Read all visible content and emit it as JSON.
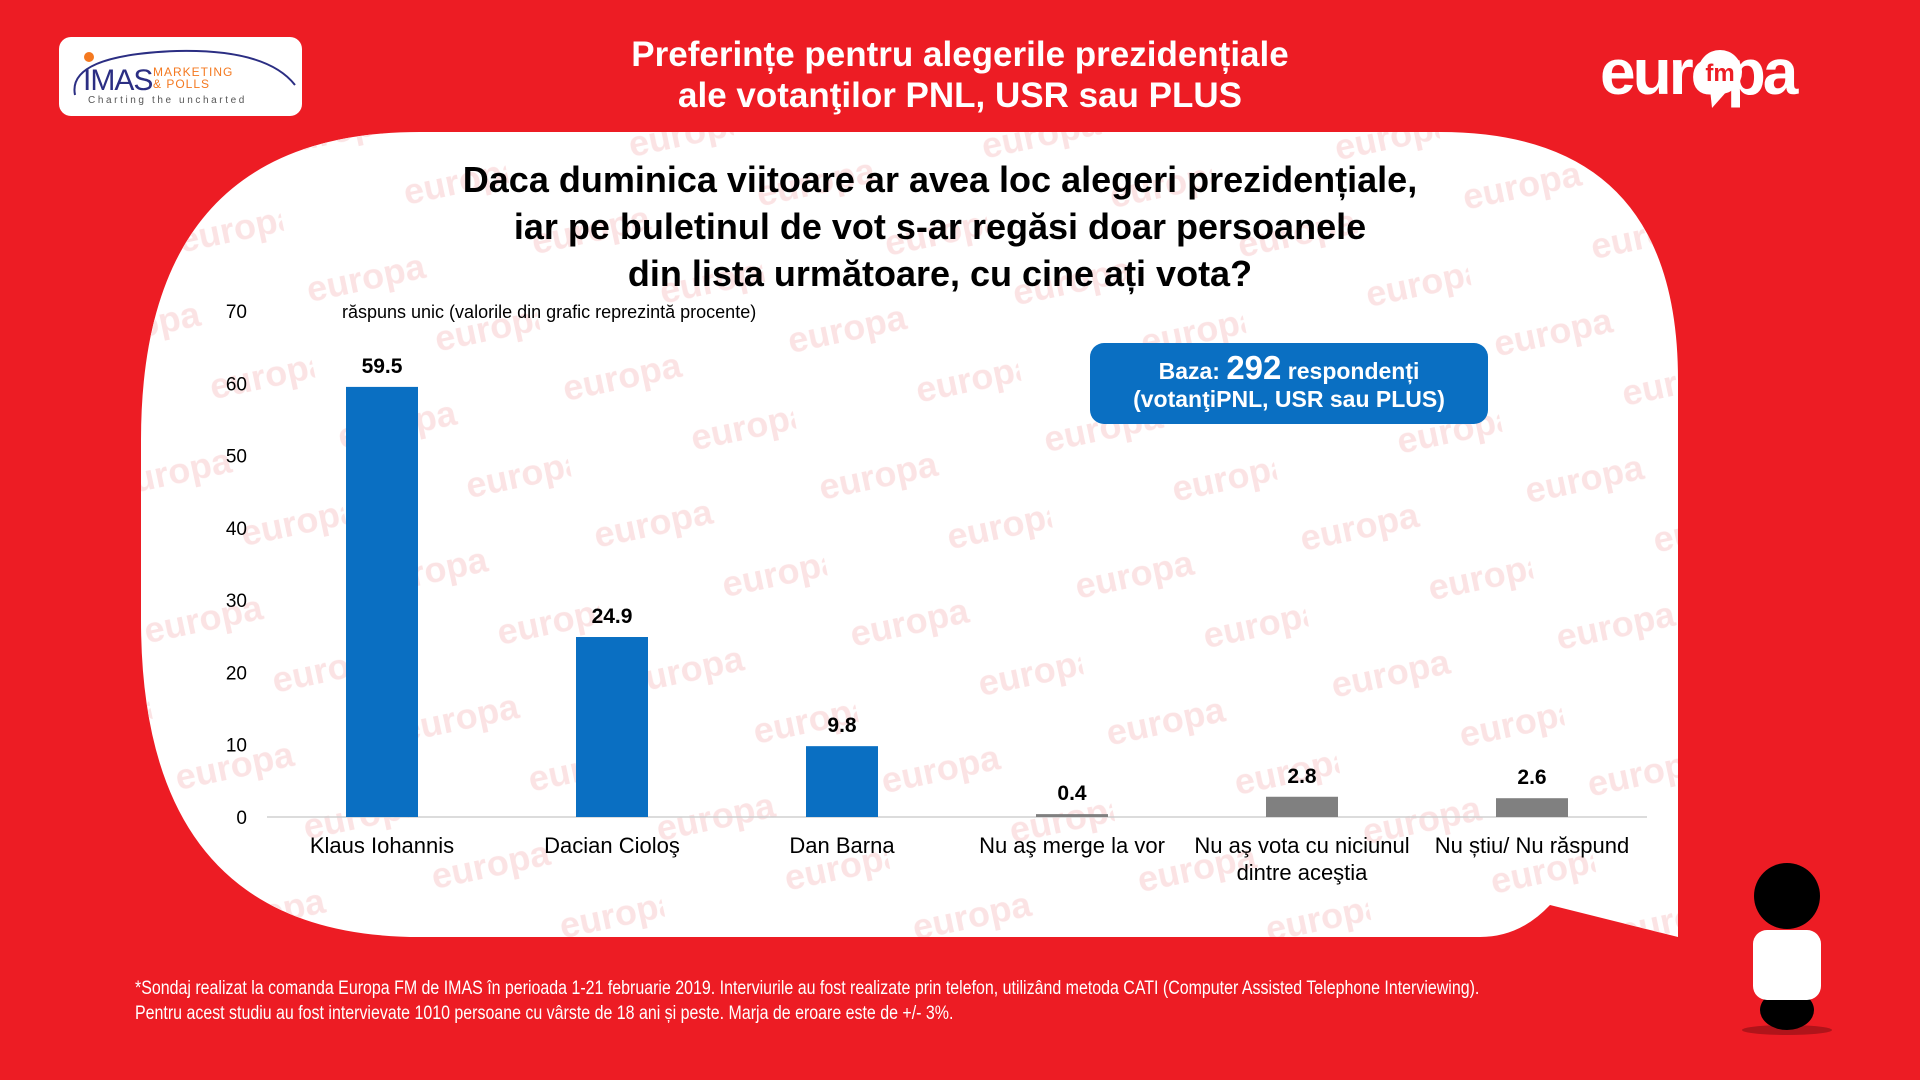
{
  "header": {
    "title_lines": [
      "Preferințe pentru alegerile prezidențiale",
      "ale votanţilor PNL, USR sau PLUS"
    ],
    "imas_logo": {
      "name": "IMAS",
      "line1": "MARKETING",
      "line2": "& POLLS",
      "tagline": "Charting the uncharted"
    },
    "europafm_logo": {
      "text": "europa",
      "badge": "fm"
    }
  },
  "question_lines": [
    "Daca duminica viitoare ar avea loc alegeri prezidențiale,",
    "iar pe buletinul de vot s-ar regăsi doar persoanele",
    "din lista următoare, cu cine ați vota?"
  ],
  "base_box": {
    "prefix": "Baza:",
    "number": "292",
    "suffix": "respondenți",
    "line2": "(votanţiPNL, USR sau PLUS)"
  },
  "watermark": "europa",
  "chart_data": {
    "type": "bar",
    "subtitle": "răspuns unic (valorile din grafic reprezintă procente)",
    "categories": [
      [
        "Klaus Iohannis"
      ],
      [
        "Dacian Cioloş"
      ],
      [
        "Dan Barna"
      ],
      [
        "Nu aş merge la vor"
      ],
      [
        "Nu aş vota cu niciunul",
        "dintre aceştia"
      ],
      [
        "Nu știu/ Nu răspund"
      ]
    ],
    "values": [
      59.5,
      24.9,
      9.8,
      0.4,
      2.8,
      2.6
    ],
    "value_labels": [
      "59.5",
      "24.9",
      "9.8",
      "0.4",
      "2.8",
      "2.6"
    ],
    "bar_colors": [
      "#0a6fc2",
      "#0a6fc2",
      "#0a6fc2",
      "#808080",
      "#808080",
      "#808080"
    ],
    "ylim": [
      0,
      70
    ],
    "yticks": [
      0,
      10,
      20,
      30,
      40,
      50,
      60,
      70
    ],
    "grid": false,
    "legend": "none"
  },
  "footer": {
    "lines": [
      "*Sondaj realizat la comanda Europa FM de IMAS în perioada 1-21 februarie 2019. Interviurile au fost realizate prin telefon, utilizând metoda CATI (Computer Assisted Telephone Interviewing).",
      "Pentru acest studiu au fost intervievate 1010 persoane cu vârste de 18 ani și peste. Marja de eroare este de +/- 3%."
    ]
  },
  "colors": {
    "background": "#ed1c24",
    "accent_blue": "#0a6fc2",
    "neutral_bar": "#808080"
  }
}
